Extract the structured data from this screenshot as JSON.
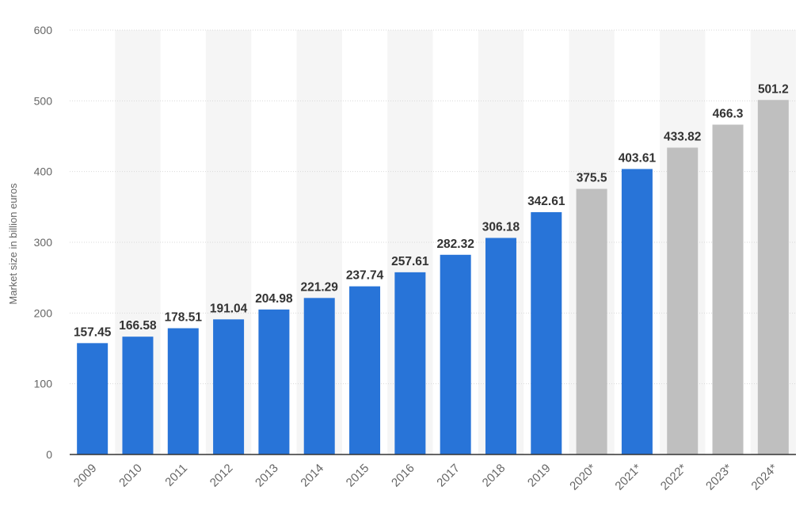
{
  "chart_data": {
    "type": "bar",
    "title": "",
    "xlabel": "",
    "ylabel": "Market size in billion euros",
    "ylim": [
      0,
      600
    ],
    "yticks": [
      0,
      100,
      200,
      300,
      400,
      500,
      600
    ],
    "grid": true,
    "categories": [
      "2009",
      "2010",
      "2011",
      "2012",
      "2013",
      "2014",
      "2015",
      "2016",
      "2017",
      "2018",
      "2019",
      "2020*",
      "2021*",
      "2022*",
      "2023*",
      "2024*"
    ],
    "values": [
      157.45,
      166.58,
      178.51,
      191.04,
      204.98,
      221.29,
      237.74,
      257.61,
      282.32,
      306.18,
      342.61,
      375.5,
      403.61,
      433.82,
      466.3,
      501.2
    ],
    "value_labels": [
      "157.45",
      "166.58",
      "178.51",
      "191.04",
      "204.98",
      "221.29",
      "237.74",
      "257.61",
      "282.32",
      "306.18",
      "342.61",
      "375.5",
      "403.61",
      "433.82",
      "466.3",
      "501.2"
    ],
    "bar_colors": [
      "#2874d8",
      "#2874d8",
      "#2874d8",
      "#2874d8",
      "#2874d8",
      "#2874d8",
      "#2874d8",
      "#2874d8",
      "#2874d8",
      "#2874d8",
      "#2874d8",
      "#bfbfbf",
      "#2874d8",
      "#bfbfbf",
      "#bfbfbf",
      "#bfbfbf"
    ],
    "band_color": "#f5f5f5",
    "axis_color": "#333333"
  }
}
